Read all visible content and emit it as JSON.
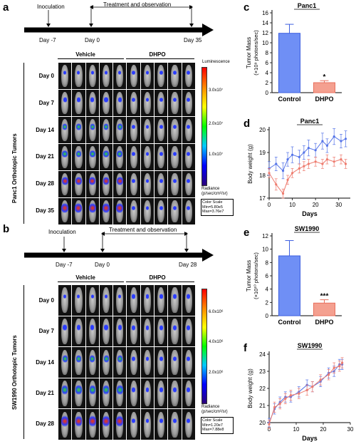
{
  "panels": {
    "a": {
      "label": "a",
      "timeline": {
        "event1": "Inoculation",
        "event2": "Treatment and observation",
        "ticks": [
          "Day -7",
          "Day 0",
          "Day 35"
        ]
      },
      "groups": [
        "Vehicle",
        "DHPO"
      ],
      "days": [
        "Day 0",
        "Day 7",
        "Day 14",
        "Day 21",
        "Day 28",
        "Day 35"
      ],
      "side_label": "Panc1 Orthotopic Tumors",
      "colorbar": {
        "title": "Luminescence",
        "ticks": [
          "3.0x10⁷",
          "2.0x10⁷",
          "1.0x10⁷"
        ],
        "unit_1": "Radiance",
        "unit_2": "(p/sec/cm²/sr)",
        "scale_1": "Color Scale",
        "scale_2": "Min=5.80e5",
        "scale_3": "Max=3.76e7"
      }
    },
    "b": {
      "label": "b",
      "timeline": {
        "event1": "Inoculation",
        "event2": "Treatment and observation",
        "ticks": [
          "Day -7",
          "Day 0",
          "Day 28"
        ]
      },
      "groups": [
        "Vehicle",
        "DHPO"
      ],
      "days": [
        "Day 0",
        "Day 7",
        "Day 14",
        "Day 21",
        "Day 28"
      ],
      "side_label": "SW1990 Orthotopic Tumors",
      "colorbar": {
        "title": "",
        "ticks": [
          "6.0x10⁶",
          "4.0x10⁶",
          "2.0x10⁶"
        ],
        "unit_1": "Radiance",
        "unit_2": "(p/sec/cm²/sr)",
        "scale_1": "Color Scale",
        "scale_2": "Min=1.20e7",
        "scale_3": "Max=7.88e8"
      }
    }
  },
  "chart_data": [
    {
      "panel": "c",
      "type": "bar",
      "title": "Panc1",
      "categories": [
        "Control",
        "DHPO"
      ],
      "values": [
        11.9,
        2.0
      ],
      "errors": [
        1.8,
        0.4
      ],
      "colors": [
        "#6f8ff5",
        "#f4a090"
      ],
      "significance": [
        "",
        "*"
      ],
      "ylabel": "Tumor Mass",
      "ylabel2": "(×10⁹ photons/sec)",
      "ylim": [
        0,
        16
      ],
      "yticks": [
        0,
        2,
        4,
        6,
        8,
        10,
        12,
        14,
        16
      ]
    },
    {
      "panel": "d",
      "type": "line",
      "title": "Panc1",
      "xlabel": "Days",
      "ylabel": "Body weight (g)",
      "xlim": [
        0,
        35
      ],
      "ylim": [
        17,
        20
      ],
      "xticks": [
        0,
        10,
        20,
        30
      ],
      "yticks": [
        17,
        18,
        19,
        20
      ],
      "series": [
        {
          "color": "#5574e8",
          "x": [
            0,
            3,
            6,
            8,
            10,
            13,
            15,
            17,
            20,
            23,
            25,
            28,
            31,
            33
          ],
          "y": [
            18.3,
            18.5,
            18.2,
            18.7,
            18.9,
            18.8,
            19.0,
            19.2,
            19.1,
            19.5,
            19.3,
            19.7,
            19.5,
            19.6
          ],
          "err": [
            0.3,
            0.3,
            0.35,
            0.3,
            0.35,
            0.3,
            0.3,
            0.35,
            0.3,
            0.35,
            0.3,
            0.35,
            0.3,
            0.35
          ]
        },
        {
          "color": "#ee7b6e",
          "x": [
            0,
            3,
            6,
            8,
            10,
            13,
            15,
            17,
            20,
            23,
            25,
            28,
            31,
            33
          ],
          "y": [
            18.1,
            17.6,
            17.2,
            17.8,
            18.1,
            18.3,
            18.4,
            18.5,
            18.6,
            18.5,
            18.7,
            18.6,
            18.7,
            18.5
          ],
          "err": [
            0.2,
            0.25,
            0.2,
            0.2,
            0.2,
            0.2,
            0.2,
            0.2,
            0.2,
            0.2,
            0.2,
            0.2,
            0.2,
            0.2
          ]
        }
      ]
    },
    {
      "panel": "e",
      "type": "bar",
      "title": "SW1990",
      "categories": [
        "Control",
        "DHPO"
      ],
      "values": [
        9.0,
        1.9
      ],
      "errors": [
        2.3,
        0.5
      ],
      "colors": [
        "#6f8ff5",
        "#f4a090"
      ],
      "significance": [
        "",
        "***"
      ],
      "ylabel": "Tumor Mass",
      "ylabel2": "(×10¹⁰ photons/sec)",
      "ylim": [
        0,
        12
      ],
      "yticks": [
        0,
        2,
        4,
        6,
        8,
        10,
        12
      ]
    },
    {
      "panel": "f",
      "type": "line",
      "title": "SW1990",
      "xlabel": "Days",
      "ylabel": "Body weight (g)",
      "xlim": [
        0,
        30
      ],
      "ylim": [
        20,
        24
      ],
      "xticks": [
        0,
        10,
        20,
        30
      ],
      "yticks": [
        20,
        21,
        22,
        23,
        24
      ],
      "series": [
        {
          "color": "#5574e8",
          "x": [
            0,
            2,
            4,
            6,
            8,
            11,
            14,
            16,
            19,
            22,
            24,
            26,
            27
          ],
          "y": [
            20.0,
            20.8,
            21.2,
            21.5,
            21.5,
            21.8,
            22.2,
            22.1,
            22.4,
            22.9,
            23.0,
            23.4,
            23.4
          ],
          "err": [
            0.25,
            0.3,
            0.3,
            0.3,
            0.3,
            0.3,
            0.3,
            0.3,
            0.3,
            0.3,
            0.3,
            0.3,
            0.3
          ]
        },
        {
          "color": "#ee7b6e",
          "x": [
            0,
            2,
            4,
            6,
            8,
            11,
            14,
            16,
            19,
            22,
            24,
            26,
            27
          ],
          "y": [
            19.9,
            20.9,
            21.1,
            21.4,
            21.6,
            21.7,
            21.9,
            22.1,
            22.5,
            22.8,
            23.2,
            23.3,
            23.5
          ],
          "err": [
            0.25,
            0.3,
            0.3,
            0.3,
            0.3,
            0.3,
            0.3,
            0.3,
            0.3,
            0.3,
            0.3,
            0.3,
            0.3
          ]
        }
      ]
    }
  ]
}
